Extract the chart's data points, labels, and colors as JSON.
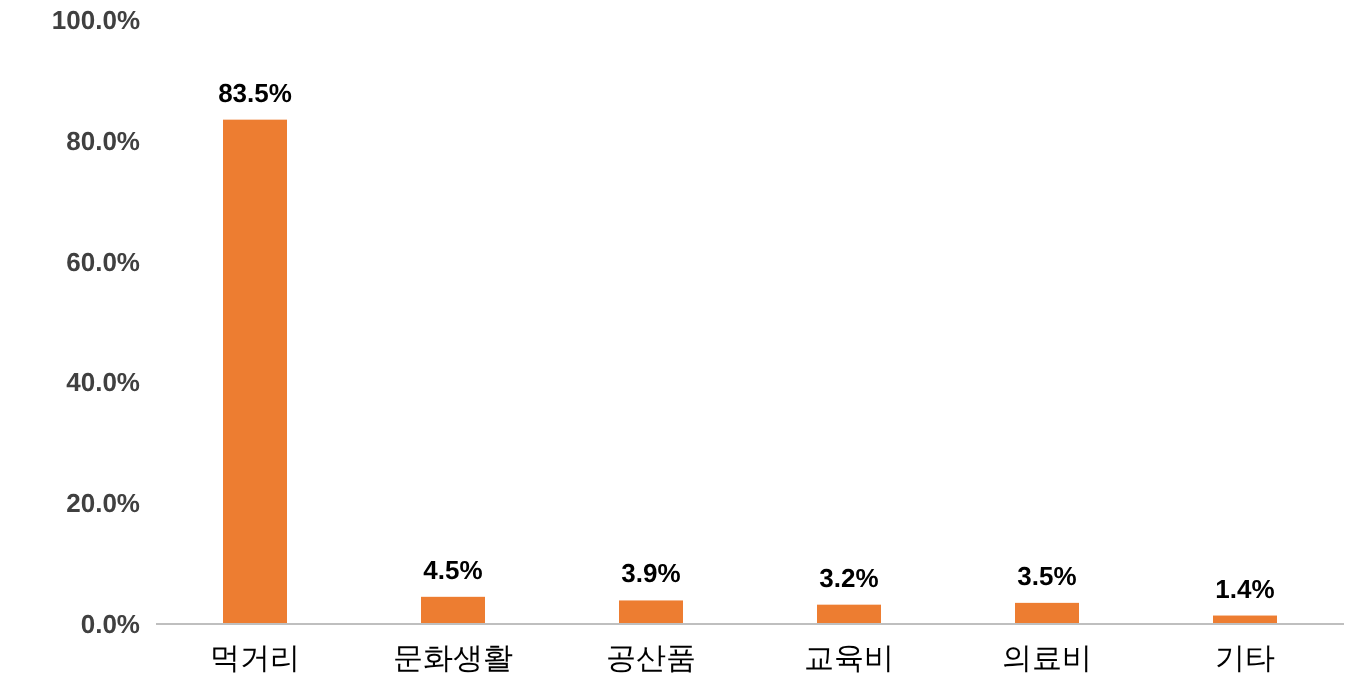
{
  "chart_data": {
    "type": "bar",
    "categories": [
      "먹거리",
      "문화생활",
      "공산품",
      "교육비",
      "의료비",
      "기타"
    ],
    "values": [
      83.5,
      4.5,
      3.9,
      3.2,
      3.5,
      1.4
    ],
    "color": "#ed7d31",
    "value_labels": [
      "83.5%",
      "4.5%",
      "3.9%",
      "3.2%",
      "3.5%",
      "1.4%"
    ],
    "ylim": [
      0,
      100
    ],
    "yticks": [
      {
        "value": 0,
        "label": "0.0%"
      },
      {
        "value": 20,
        "label": "20.0%"
      },
      {
        "value": 40,
        "label": "40.0%"
      },
      {
        "value": 60,
        "label": "60.0%"
      },
      {
        "value": 80,
        "label": "80.0%"
      },
      {
        "value": 100,
        "label": "100.0%"
      }
    ]
  }
}
